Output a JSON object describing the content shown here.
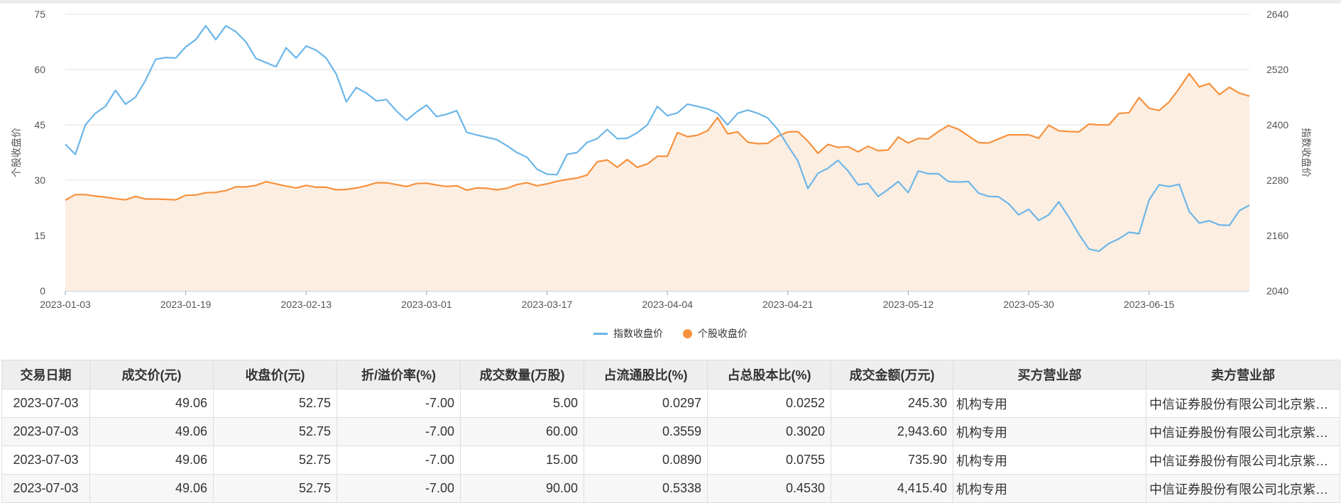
{
  "chart_data": {
    "type": "line",
    "left_axis": {
      "label": "个股收盘价",
      "ticks": [
        0,
        15,
        30,
        45,
        60,
        75
      ],
      "range": [
        0,
        75
      ]
    },
    "right_axis": {
      "label": "指数收盘价",
      "ticks": [
        2040,
        2160,
        2280,
        2400,
        2520,
        2640
      ],
      "range": [
        2040,
        2640
      ]
    },
    "x_tick_labels": [
      "2023-01-03",
      "2023-01-19",
      "2023-02-13",
      "2023-03-01",
      "2023-03-17",
      "2023-04-04",
      "2023-04-21",
      "2023-05-12",
      "2023-05-30",
      "2023-06-15"
    ],
    "x_tick_indices": [
      0,
      12,
      24,
      36,
      48,
      60,
      72,
      84,
      96,
      108
    ],
    "legend_position": "bottom-center",
    "grid": true,
    "series": [
      {
        "name": "指数收盘价",
        "axis": "right",
        "color": "#6cb6e8",
        "area": false,
        "values": [
          2358,
          2336,
          2400,
          2425,
          2440,
          2475,
          2445,
          2460,
          2497,
          2542,
          2546,
          2545,
          2569,
          2585,
          2615,
          2585,
          2615,
          2602,
          2580,
          2544,
          2535,
          2526,
          2567,
          2545,
          2571,
          2562,
          2545,
          2510,
          2450,
          2481,
          2469,
          2452,
          2455,
          2430,
          2410,
          2428,
          2443,
          2418,
          2423,
          2431,
          2384,
          2378,
          2373,
          2368,
          2355,
          2340,
          2330,
          2304,
          2293,
          2292,
          2336,
          2340,
          2362,
          2370,
          2390,
          2370,
          2371,
          2383,
          2400,
          2440,
          2420,
          2426,
          2445,
          2440,
          2435,
          2425,
          2400,
          2425,
          2432,
          2425,
          2415,
          2390,
          2355,
          2322,
          2262,
          2295,
          2306,
          2323,
          2300,
          2270,
          2273,
          2245,
          2260,
          2277,
          2253,
          2300,
          2294,
          2294,
          2277,
          2276,
          2277,
          2252,
          2245,
          2244,
          2229,
          2205,
          2217,
          2193,
          2205,
          2233,
          2200,
          2163,
          2131,
          2126,
          2143,
          2153,
          2167,
          2164,
          2237,
          2270,
          2266,
          2271,
          2212,
          2187,
          2192,
          2183,
          2182,
          2214,
          2226
        ]
      },
      {
        "name": "个股收盘价",
        "axis": "left",
        "color": "#f7913d",
        "area": true,
        "values": [
          24.6,
          26.1,
          26.1,
          25.7,
          25.4,
          25.0,
          24.7,
          25.6,
          24.9,
          24.9,
          24.8,
          24.7,
          25.9,
          26.0,
          26.6,
          26.7,
          27.2,
          28.2,
          28.2,
          28.6,
          29.6,
          29.0,
          28.4,
          27.9,
          28.6,
          28.1,
          28.1,
          27.4,
          27.5,
          27.9,
          28.5,
          29.3,
          29.3,
          28.8,
          28.3,
          29.1,
          29.2,
          28.7,
          28.3,
          28.5,
          27.3,
          27.9,
          27.8,
          27.4,
          27.8,
          28.8,
          29.3,
          28.5,
          29.0,
          29.7,
          30.2,
          30.6,
          31.4,
          35.0,
          35.5,
          33.5,
          35.6,
          33.5,
          34.4,
          36.5,
          36.5,
          42.9,
          41.8,
          42.2,
          43.4,
          47.0,
          42.6,
          43.1,
          40.3,
          39.9,
          40.0,
          41.9,
          43.1,
          43.2,
          40.6,
          37.3,
          39.7,
          38.9,
          39.1,
          37.7,
          39.2,
          38.0,
          38.2,
          41.7,
          40.1,
          41.3,
          41.2,
          43.2,
          44.8,
          43.8,
          42.0,
          40.2,
          40.1,
          41.2,
          42.3,
          42.3,
          42.3,
          41.4,
          44.9,
          43.4,
          43.2,
          43.1,
          45.2,
          45.0,
          45.0,
          48.1,
          48.3,
          52.4,
          49.5,
          48.9,
          51.2,
          54.9,
          58.9,
          55.3,
          56.2,
          53.2,
          55.2,
          53.6,
          52.8
        ]
      }
    ]
  },
  "legend": {
    "index_label": "指数收盘价",
    "stock_label": "个股收盘价"
  },
  "table": {
    "headers": [
      "交易日期",
      "成交价(元)",
      "收盘价(元)",
      "折/溢价率(%)",
      "成交数量(万股)",
      "占流通股比(%)",
      "占总股本比(%)",
      "成交金额(万元)",
      "买方营业部",
      "卖方营业部"
    ],
    "rows": [
      [
        "2023-07-03",
        "49.06",
        "52.75",
        "-7.00",
        "5.00",
        "0.0297",
        "0.0252",
        "245.30",
        "机构专用",
        "中信证券股份有限公司北京紫…"
      ],
      [
        "2023-07-03",
        "49.06",
        "52.75",
        "-7.00",
        "60.00",
        "0.3559",
        "0.3020",
        "2,943.60",
        "机构专用",
        "中信证券股份有限公司北京紫…"
      ],
      [
        "2023-07-03",
        "49.06",
        "52.75",
        "-7.00",
        "15.00",
        "0.0890",
        "0.0755",
        "735.90",
        "机构专用",
        "中信证券股份有限公司北京紫…"
      ],
      [
        "2023-07-03",
        "49.06",
        "52.75",
        "-7.00",
        "90.00",
        "0.5338",
        "0.4530",
        "4,415.40",
        "机构专用",
        "中信证券股份有限公司北京紫…"
      ]
    ]
  }
}
